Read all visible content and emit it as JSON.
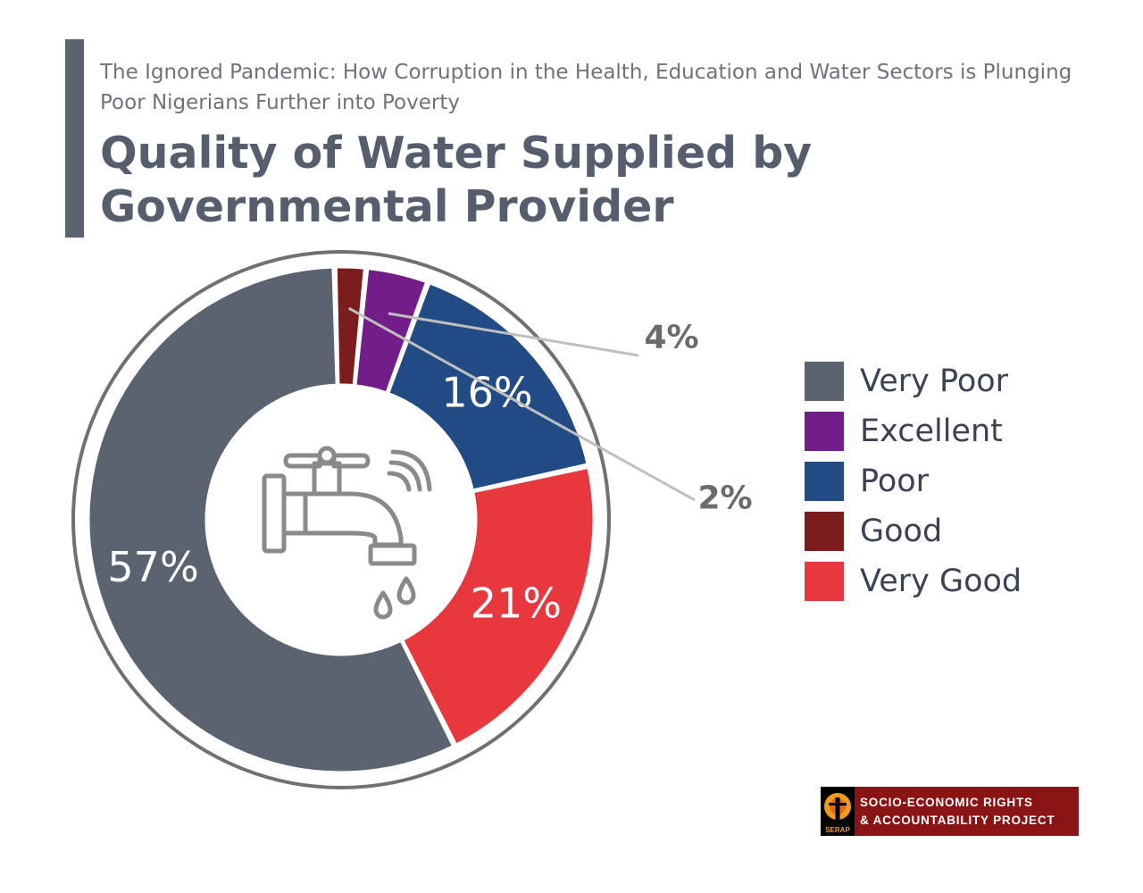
{
  "header": {
    "subtitle": "The Ignored Pandemic: How Corruption in the Health, Education and Water Sectors is Plunging Poor Nigerians Further into Poverty",
    "title": "Quality of Water Supplied by Governmental Provider"
  },
  "chart_data": {
    "type": "pie",
    "variant": "donut",
    "slices": [
      {
        "name": "Very Poor",
        "value": 57,
        "label": "57%",
        "color": "#5b6270"
      },
      {
        "name": "Very Good",
        "value": 21,
        "label": "21%",
        "color": "#e8383d"
      },
      {
        "name": "Poor",
        "value": 16,
        "label": "16%",
        "color": "#224a85"
      },
      {
        "name": "Excellent",
        "value": 4,
        "label": "4%",
        "color": "#731d8a"
      },
      {
        "name": "Good",
        "value": 2,
        "label": "2%",
        "color": "#7d1c1c"
      }
    ],
    "legend_position": "right",
    "legend_order": [
      "Very Poor",
      "Excellent",
      "Poor",
      "Good",
      "Very Good"
    ],
    "center_icon": "water-tap-icon"
  },
  "logo": {
    "line1": "SOCIO-ECONOMIC RIGHTS",
    "line2": "& ACCOUNTABILITY PROJECT",
    "emblem_text": "SERAP",
    "color": "#8a1414"
  }
}
